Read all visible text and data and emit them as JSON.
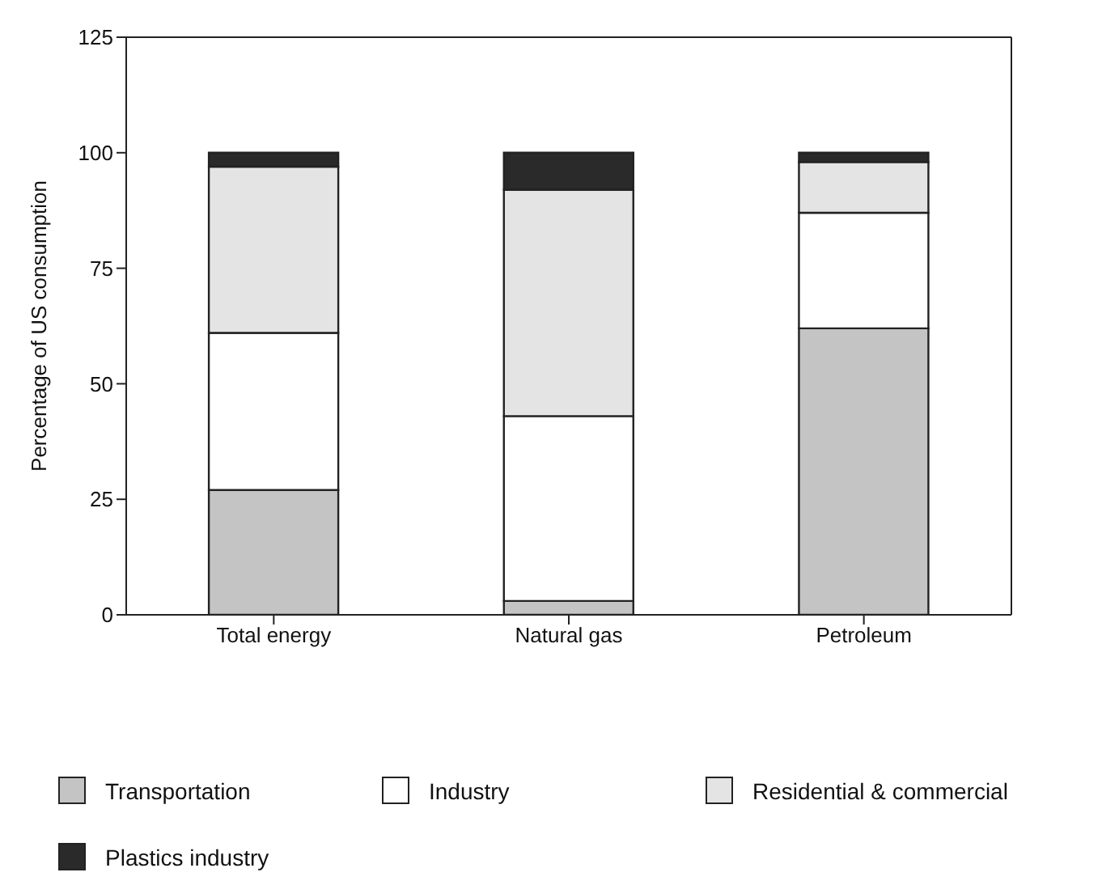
{
  "chart_data": {
    "type": "bar",
    "stacked": true,
    "ylabel": "Percentage of US consumption",
    "categories": [
      "Total energy",
      "Natural gas",
      "Petroleum"
    ],
    "series": [
      {
        "name": "Transportation",
        "color": "#c4c4c4",
        "values": [
          27,
          3,
          62
        ]
      },
      {
        "name": "Industry",
        "color": "#ffffff",
        "values": [
          34,
          40,
          25
        ]
      },
      {
        "name": "Residential & commercial",
        "color": "#e4e4e4",
        "values": [
          36,
          49,
          11
        ]
      },
      {
        "name": "Plastics industry",
        "color": "#2a2a2a",
        "values": [
          3,
          8,
          2
        ]
      }
    ],
    "ylim": [
      0,
      125
    ],
    "yticks": [
      0,
      25,
      50,
      75,
      100,
      125
    ],
    "legend": "bottom"
  }
}
